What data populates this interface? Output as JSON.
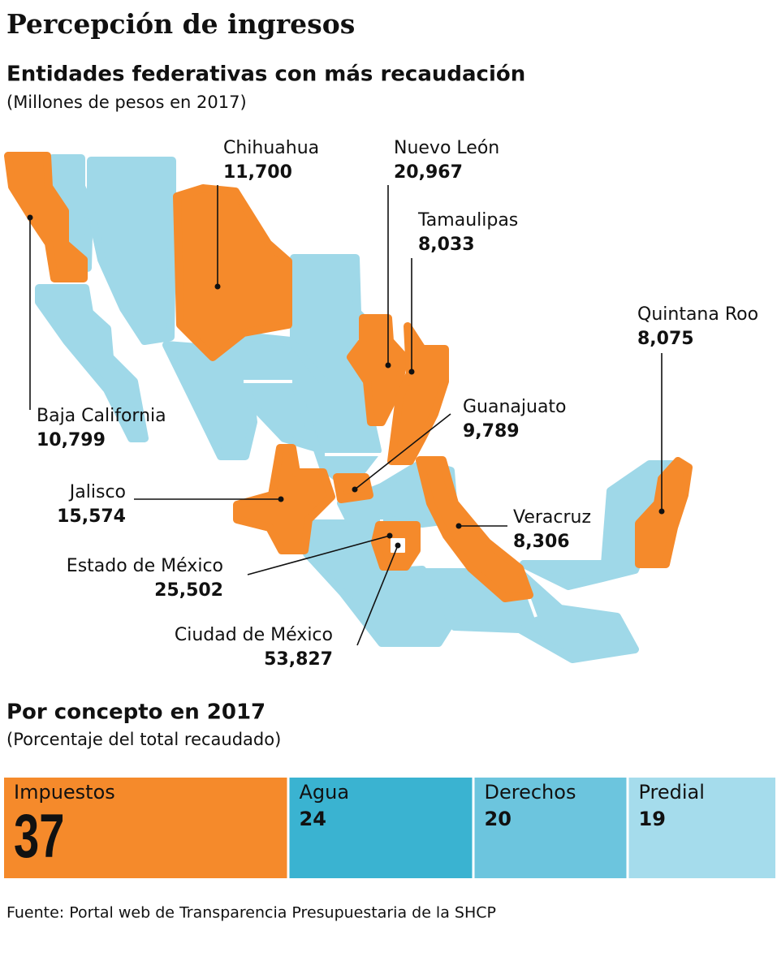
{
  "title": "Percepción de ingresos",
  "chart_data": [
    {
      "type": "map",
      "title": "Entidades federativas con más recaudación",
      "subtitle": "(Millones de pesos en 2017)",
      "color": "#f58a2b",
      "categories": [
        "Chihuahua",
        "Nuevo León",
        "Tamaulipas",
        "Quintana Roo",
        "Baja California",
        "Guanajuato",
        "Jalisco",
        "Veracruz",
        "Estado de México",
        "Ciudad de México"
      ],
      "values": [
        11700,
        20967,
        8033,
        8075,
        10799,
        9789,
        15574,
        8306,
        25502,
        53827
      ],
      "value_labels": [
        "11,700",
        "20,967",
        "8,033",
        "8,075",
        "10,799",
        "9,789",
        "15,574",
        "8,306",
        "25,502",
        "53,827"
      ]
    },
    {
      "type": "bar",
      "title": "Por concepto en 2017",
      "subtitle": "(Porcentaje del total recaudado)",
      "categories": [
        "Impuestos",
        "Agua",
        "Derechos",
        "Predial"
      ],
      "values": [
        37,
        24,
        20,
        19
      ],
      "colors": [
        "#f58a2b",
        "#3ab3d1",
        "#6cc5de",
        "#a5dcec"
      ]
    }
  ],
  "source": "Fuente: Portal web de Transparencia Presupuestaria de la SHCP"
}
